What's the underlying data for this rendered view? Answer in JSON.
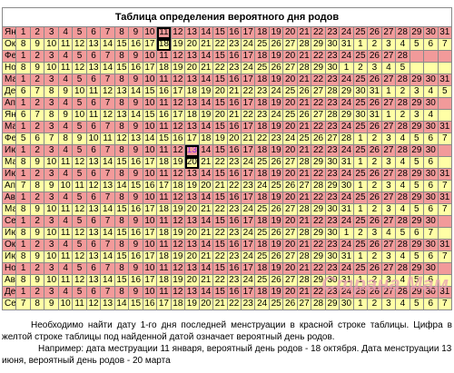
{
  "title": "Таблица определения вероятного дня родов",
  "rows": [
    {
      "month": "Янв",
      "days": [
        1,
        2,
        3,
        4,
        5,
        6,
        7,
        8,
        9,
        10,
        11,
        12,
        13,
        14,
        15,
        16,
        17,
        18,
        19,
        20,
        21,
        22,
        23,
        24,
        25,
        26,
        27,
        28,
        29,
        30,
        31
      ]
    },
    {
      "month": "Окт",
      "days": [
        8,
        9,
        10,
        11,
        12,
        13,
        14,
        15,
        16,
        17,
        18,
        19,
        20,
        21,
        22,
        23,
        24,
        25,
        26,
        27,
        28,
        29,
        30,
        31,
        1,
        2,
        3,
        4,
        5,
        6,
        7
      ]
    },
    {
      "month": "Фев",
      "days": [
        1,
        2,
        3,
        4,
        5,
        6,
        7,
        8,
        9,
        10,
        11,
        12,
        13,
        14,
        15,
        16,
        17,
        18,
        19,
        20,
        21,
        22,
        23,
        24,
        25,
        26,
        27,
        28
      ]
    },
    {
      "month": "Нояб",
      "days": [
        8,
        9,
        10,
        11,
        12,
        13,
        14,
        15,
        16,
        17,
        18,
        19,
        20,
        21,
        22,
        23,
        24,
        25,
        26,
        27,
        28,
        29,
        30,
        1,
        2,
        3,
        4,
        5
      ]
    },
    {
      "month": "Март",
      "days": [
        1,
        2,
        3,
        4,
        5,
        6,
        7,
        8,
        9,
        10,
        11,
        12,
        13,
        14,
        15,
        16,
        17,
        18,
        19,
        20,
        21,
        22,
        23,
        24,
        25,
        26,
        27,
        28,
        29,
        30,
        31
      ]
    },
    {
      "month": "Дек",
      "days": [
        6,
        7,
        8,
        9,
        10,
        11,
        12,
        13,
        14,
        15,
        16,
        17,
        18,
        19,
        20,
        21,
        22,
        23,
        24,
        25,
        26,
        27,
        28,
        29,
        30,
        31,
        1,
        2,
        3,
        4,
        5
      ]
    },
    {
      "month": "Апр",
      "days": [
        1,
        2,
        3,
        4,
        5,
        6,
        7,
        8,
        9,
        10,
        11,
        12,
        13,
        14,
        15,
        16,
        17,
        18,
        19,
        20,
        21,
        22,
        23,
        24,
        25,
        26,
        27,
        28,
        29,
        30
      ]
    },
    {
      "month": "Янв",
      "days": [
        6,
        7,
        8,
        9,
        10,
        11,
        12,
        13,
        14,
        15,
        16,
        17,
        18,
        19,
        20,
        21,
        22,
        23,
        24,
        25,
        26,
        27,
        28,
        29,
        30,
        31,
        1,
        2,
        3,
        4
      ]
    },
    {
      "month": "Май",
      "days": [
        1,
        2,
        3,
        4,
        5,
        6,
        7,
        8,
        9,
        10,
        11,
        12,
        13,
        14,
        15,
        16,
        17,
        18,
        19,
        20,
        21,
        22,
        23,
        24,
        25,
        26,
        27,
        28,
        29,
        30,
        31
      ]
    },
    {
      "month": "Фев",
      "days": [
        5,
        6,
        7,
        8,
        9,
        10,
        11,
        12,
        13,
        14,
        15,
        16,
        17,
        18,
        19,
        20,
        21,
        22,
        23,
        24,
        25,
        26,
        27,
        28,
        1,
        2,
        3,
        4,
        5,
        6,
        7
      ]
    },
    {
      "month": "Июнь",
      "days": [
        1,
        2,
        3,
        4,
        5,
        6,
        7,
        8,
        9,
        10,
        11,
        12,
        13,
        14,
        15,
        16,
        17,
        18,
        19,
        20,
        21,
        22,
        23,
        24,
        25,
        26,
        27,
        28,
        29,
        30
      ]
    },
    {
      "month": "Март",
      "days": [
        8,
        9,
        10,
        11,
        12,
        13,
        14,
        15,
        16,
        17,
        18,
        19,
        20,
        21,
        22,
        23,
        24,
        25,
        26,
        27,
        28,
        29,
        30,
        31,
        1,
        2,
        3,
        4,
        5,
        6
      ]
    },
    {
      "month": "Июль",
      "days": [
        1,
        2,
        3,
        4,
        5,
        6,
        7,
        8,
        9,
        10,
        11,
        12,
        13,
        14,
        15,
        16,
        17,
        18,
        19,
        20,
        21,
        22,
        23,
        24,
        25,
        26,
        27,
        28,
        29,
        30,
        31
      ]
    },
    {
      "month": "Апр",
      "days": [
        7,
        8,
        9,
        10,
        11,
        12,
        13,
        14,
        15,
        16,
        17,
        18,
        19,
        20,
        21,
        22,
        23,
        24,
        25,
        26,
        27,
        28,
        29,
        30,
        1,
        2,
        3,
        4,
        5,
        6,
        7
      ]
    },
    {
      "month": "Авг",
      "days": [
        1,
        2,
        3,
        4,
        5,
        6,
        7,
        8,
        9,
        10,
        11,
        12,
        13,
        14,
        15,
        16,
        17,
        18,
        19,
        20,
        21,
        22,
        23,
        24,
        25,
        26,
        27,
        28,
        29,
        30,
        31
      ]
    },
    {
      "month": "Май",
      "days": [
        8,
        9,
        10,
        11,
        12,
        13,
        14,
        15,
        16,
        17,
        18,
        19,
        20,
        21,
        22,
        23,
        24,
        25,
        26,
        27,
        28,
        29,
        30,
        31,
        1,
        2,
        3,
        4,
        5,
        6,
        7
      ]
    },
    {
      "month": "Сент",
      "days": [
        1,
        2,
        3,
        4,
        5,
        6,
        7,
        8,
        9,
        10,
        11,
        12,
        13,
        14,
        15,
        16,
        17,
        18,
        19,
        20,
        21,
        22,
        23,
        24,
        25,
        26,
        27,
        28,
        29,
        30
      ]
    },
    {
      "month": "Июнь",
      "days": [
        8,
        9,
        10,
        11,
        12,
        13,
        14,
        15,
        16,
        17,
        18,
        19,
        20,
        21,
        22,
        23,
        24,
        25,
        26,
        27,
        28,
        29,
        30,
        1,
        2,
        3,
        4,
        5,
        6,
        7
      ]
    },
    {
      "month": "Окт",
      "days": [
        1,
        2,
        3,
        4,
        5,
        6,
        7,
        8,
        9,
        10,
        11,
        12,
        13,
        14,
        15,
        16,
        17,
        18,
        19,
        20,
        21,
        22,
        23,
        24,
        25,
        26,
        27,
        28,
        29,
        30,
        31
      ]
    },
    {
      "month": "Июль",
      "days": [
        8,
        9,
        10,
        11,
        12,
        13,
        14,
        15,
        16,
        17,
        18,
        19,
        20,
        21,
        22,
        23,
        24,
        25,
        26,
        27,
        28,
        29,
        30,
        31,
        1,
        2,
        3,
        4,
        5,
        6,
        7
      ]
    },
    {
      "month": "Нояб",
      "days": [
        1,
        2,
        3,
        4,
        5,
        6,
        7,
        8,
        9,
        10,
        11,
        12,
        13,
        14,
        15,
        16,
        17,
        18,
        19,
        20,
        21,
        22,
        23,
        24,
        25,
        26,
        27,
        28,
        29,
        30
      ]
    },
    {
      "month": "Авг",
      "days": [
        8,
        9,
        10,
        11,
        12,
        13,
        14,
        15,
        16,
        17,
        18,
        19,
        20,
        21,
        22,
        23,
        24,
        25,
        26,
        27,
        28,
        29,
        30,
        31,
        1,
        2,
        3,
        4,
        5,
        6
      ]
    },
    {
      "month": "Дек",
      "days": [
        1,
        2,
        3,
        4,
        5,
        6,
        7,
        8,
        9,
        10,
        11,
        12,
        13,
        14,
        15,
        16,
        17,
        18,
        19,
        20,
        21,
        22,
        23,
        24,
        25,
        26,
        27,
        28,
        29,
        30,
        31
      ]
    },
    {
      "month": "Сент",
      "days": [
        7,
        8,
        9,
        10,
        11,
        12,
        13,
        14,
        15,
        16,
        17,
        18,
        19,
        20,
        21,
        22,
        23,
        24,
        25,
        26,
        27,
        28,
        29,
        30,
        1,
        2,
        3,
        4,
        5,
        6,
        7
      ]
    }
  ],
  "note": "Необходимо найти дату 1-го дня последней менструации  в красной строке таблицы. Цифра в желтой строке таблицы под найденной датой означает вероятный день родов.",
  "example": "Например: дата меструации 11 января, вероятный день родов - 18 октября. Дата менструации 13 июня, вероятный день родов - 20 марта",
  "watermark": "Страна Мам"
}
